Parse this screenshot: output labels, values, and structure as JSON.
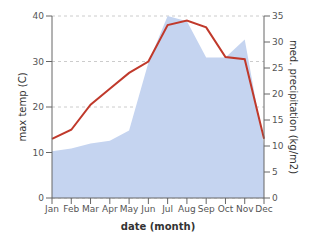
{
  "chart_data": {
    "type": "line",
    "xlabel": "date (month)",
    "ylabel": "max temp (C)",
    "y2label": "med. precipitation (kg/m2)",
    "categories": [
      "Jan",
      "Feb",
      "Mar",
      "Apr",
      "May",
      "Jun",
      "Jul",
      "Aug",
      "Sep",
      "Oct",
      "Nov",
      "Dec"
    ],
    "series": [
      {
        "type": "area",
        "axis": "y2",
        "color": "#c5d4f0",
        "values": [
          9.0,
          9.5,
          10.5,
          11.0,
          13.0,
          26.0,
          35.0,
          34.0,
          27.0,
          27.0,
          30.5,
          10.0
        ]
      },
      {
        "type": "line",
        "color": "#c0392b",
        "values": [
          13.0,
          15.0,
          20.5,
          24.0,
          27.5,
          30.0,
          38.0,
          39.0,
          37.5,
          31.0,
          30.5,
          13.0
        ]
      }
    ],
    "ylim": [
      0,
      40
    ],
    "yticks": [
      0,
      10,
      20,
      30,
      40
    ],
    "y2lim": [
      0,
      35
    ],
    "y2ticks": [
      0,
      5,
      10,
      15,
      20,
      25,
      30,
      35
    ],
    "grid": true
  }
}
